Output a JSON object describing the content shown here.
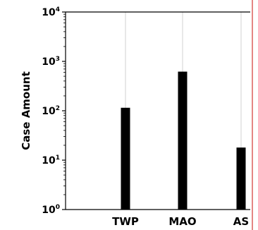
{
  "chart_data": {
    "type": "bar",
    "categories": [
      "TWP",
      "MAO",
      "AS"
    ],
    "values": [
      115,
      620,
      18
    ],
    "ylabel": "Case Amount",
    "xlabel": "",
    "yscale": "log",
    "ylim": [
      1,
      10000
    ],
    "yticks": [
      {
        "base": "10",
        "exp": "0"
      },
      {
        "base": "10",
        "exp": "1"
      },
      {
        "base": "10",
        "exp": "2"
      },
      {
        "base": "10",
        "exp": "3"
      },
      {
        "base": "10",
        "exp": "4"
      }
    ],
    "grid": "vertical",
    "bar_color": "#000000",
    "right_edge_line_color": "#d9534f"
  }
}
